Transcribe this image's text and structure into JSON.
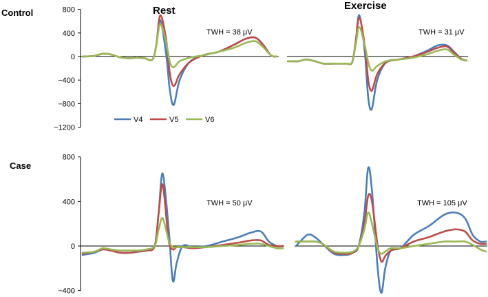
{
  "figure": {
    "row_labels": [
      "Control",
      "Case"
    ],
    "column_titles": [
      "Rest",
      "Exercise"
    ]
  },
  "legend": [
    {
      "name": "V4",
      "color": "#4a7ebb"
    },
    {
      "name": "V5",
      "color": "#be4b48"
    },
    {
      "name": "V6",
      "color": "#98b954"
    }
  ],
  "chart_data": [
    {
      "type": "line",
      "panel": "Control - Rest",
      "annotation": "TWH = 38 μV",
      "ylim": [
        -1200,
        800
      ],
      "yticks": [
        800,
        400,
        0,
        -400,
        -800,
        -1200
      ],
      "ytick_labels": [
        "800",
        "400",
        "0",
        "−400",
        "−800",
        "−1200"
      ],
      "x": [
        0,
        0.06,
        0.1,
        0.14,
        0.19,
        0.24,
        0.28,
        0.32,
        0.36,
        0.38,
        0.4,
        0.43,
        0.45,
        0.47,
        0.5,
        0.55,
        0.62,
        0.7,
        0.78,
        0.84,
        0.89,
        0.93,
        0.97,
        1.0
      ],
      "series": [
        {
          "name": "V4",
          "values": [
            0,
            10,
            45,
            40,
            -10,
            -30,
            -20,
            -30,
            -50,
            200,
            620,
            50,
            -580,
            -820,
            -400,
            -100,
            20,
            80,
            200,
            300,
            320,
            200,
            20,
            0
          ]
        },
        {
          "name": "V5",
          "values": [
            0,
            10,
            45,
            40,
            -10,
            -30,
            -20,
            -30,
            -50,
            200,
            700,
            300,
            -300,
            -500,
            -300,
            -100,
            20,
            80,
            200,
            300,
            320,
            200,
            20,
            0
          ]
        },
        {
          "name": "V6",
          "values": [
            0,
            10,
            45,
            40,
            -10,
            -30,
            -20,
            -30,
            -50,
            200,
            550,
            250,
            -100,
            -180,
            -80,
            -20,
            20,
            80,
            150,
            230,
            260,
            160,
            20,
            0
          ]
        }
      ]
    },
    {
      "type": "line",
      "panel": "Control - Exercise",
      "annotation": "TWH = 31 μV",
      "ylim": [
        -1200,
        800
      ],
      "x": [
        0,
        0.06,
        0.1,
        0.14,
        0.2,
        0.26,
        0.3,
        0.33,
        0.36,
        0.38,
        0.4,
        0.43,
        0.45,
        0.47,
        0.5,
        0.55,
        0.62,
        0.7,
        0.78,
        0.84,
        0.89,
        0.93,
        0.97,
        1.0
      ],
      "series": [
        {
          "name": "V4",
          "values": [
            -80,
            -80,
            -50,
            -70,
            -120,
            -120,
            -120,
            -120,
            -100,
            250,
            700,
            100,
            -700,
            -890,
            -400,
            -100,
            -50,
            0,
            100,
            190,
            190,
            80,
            -40,
            -70
          ]
        },
        {
          "name": "V5",
          "values": [
            -80,
            -80,
            -50,
            -70,
            -120,
            -120,
            -120,
            -120,
            -100,
            250,
            660,
            200,
            -400,
            -580,
            -300,
            -100,
            -50,
            0,
            80,
            150,
            170,
            60,
            -40,
            -70
          ]
        },
        {
          "name": "V6",
          "values": [
            -80,
            -80,
            -50,
            -70,
            -120,
            -120,
            -120,
            -120,
            -100,
            200,
            500,
            200,
            -100,
            -240,
            -160,
            -80,
            -50,
            -20,
            40,
            100,
            120,
            30,
            -50,
            -70
          ]
        }
      ]
    },
    {
      "type": "line",
      "panel": "Case - Rest",
      "annotation": "TWH = 50 μV",
      "ylim": [
        -400,
        800
      ],
      "yticks": [
        800,
        400,
        0,
        -400
      ],
      "ytick_labels": [
        "800",
        "400",
        "0",
        "−400"
      ],
      "x": [
        0,
        0.06,
        0.1,
        0.14,
        0.19,
        0.24,
        0.28,
        0.32,
        0.36,
        0.38,
        0.4,
        0.43,
        0.45,
        0.47,
        0.5,
        0.55,
        0.62,
        0.7,
        0.78,
        0.84,
        0.89,
        0.93,
        0.97,
        1.0
      ],
      "series": [
        {
          "name": "V4",
          "values": [
            -80,
            -60,
            -30,
            -40,
            -60,
            -60,
            -50,
            -40,
            0,
            300,
            650,
            150,
            -310,
            -150,
            0,
            -10,
            0,
            40,
            80,
            120,
            130,
            40,
            0,
            0
          ]
        },
        {
          "name": "V5",
          "values": [
            -70,
            -50,
            -30,
            -40,
            -60,
            -60,
            -50,
            -40,
            0,
            300,
            550,
            50,
            -30,
            -10,
            -10,
            -20,
            -10,
            10,
            30,
            50,
            50,
            10,
            0,
            0
          ]
        },
        {
          "name": "V6",
          "values": [
            -60,
            -50,
            -20,
            -30,
            -40,
            -40,
            -40,
            -30,
            0,
            150,
            250,
            50,
            -10,
            -10,
            -10,
            -10,
            -10,
            0,
            10,
            20,
            20,
            0,
            -20,
            -20
          ]
        }
      ]
    },
    {
      "type": "line",
      "panel": "Case - Exercise",
      "annotation": "TWH = 105 μV",
      "ylim": [
        -400,
        800
      ],
      "x": [
        0,
        0.06,
        0.1,
        0.14,
        0.2,
        0.26,
        0.3,
        0.33,
        0.36,
        0.38,
        0.4,
        0.43,
        0.45,
        0.47,
        0.5,
        0.55,
        0.62,
        0.7,
        0.78,
        0.84,
        0.89,
        0.93,
        0.97,
        1.0
      ],
      "series": [
        {
          "name": "V4",
          "values": [
            0,
            100,
            80,
            20,
            -70,
            -80,
            -60,
            0,
            300,
            700,
            500,
            -200,
            -420,
            -200,
            -40,
            -20,
            100,
            180,
            280,
            300,
            250,
            100,
            40,
            40
          ]
        },
        {
          "name": "V5",
          "values": [
            40,
            40,
            40,
            20,
            -60,
            -70,
            -60,
            0,
            200,
            450,
            400,
            0,
            -140,
            -90,
            -40,
            -20,
            40,
            80,
            130,
            150,
            130,
            50,
            20,
            20
          ]
        },
        {
          "name": "V6",
          "values": [
            40,
            40,
            40,
            20,
            -50,
            -60,
            -50,
            0,
            150,
            300,
            200,
            -20,
            -70,
            -50,
            -20,
            -20,
            0,
            20,
            40,
            40,
            40,
            10,
            -30,
            -50
          ]
        }
      ]
    }
  ]
}
